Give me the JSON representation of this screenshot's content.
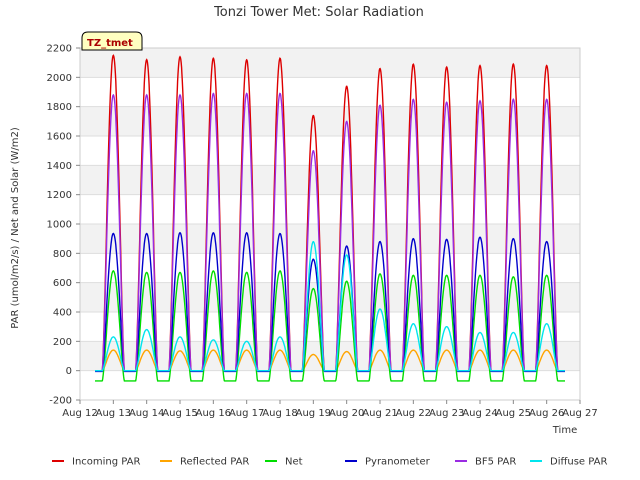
{
  "chart_data": {
    "type": "line",
    "title": "Tonzi Tower Met: Solar Radiation",
    "site_label": "TZ_tmet",
    "xlabel": "Time",
    "ylabel": "PAR (umol/m2/s) / Net and Solar (W/m2)",
    "xlim": [
      12,
      27
    ],
    "ylim": [
      -200,
      2200
    ],
    "x_ticks": [
      "Aug 12",
      "Aug 13",
      "Aug 14",
      "Aug 15",
      "Aug 16",
      "Aug 17",
      "Aug 18",
      "Aug 19",
      "Aug 20",
      "Aug 21",
      "Aug 22",
      "Aug 23",
      "Aug 24",
      "Aug 25",
      "Aug 26",
      "Aug 27"
    ],
    "y_ticks": [
      -200,
      0,
      200,
      400,
      600,
      800,
      1000,
      1200,
      1400,
      1600,
      1800,
      2000,
      2200
    ],
    "grid": true,
    "legend_position": "bottom",
    "day_centers": [
      13,
      14,
      15,
      16,
      17,
      18,
      19,
      20,
      21,
      22,
      23,
      24,
      25,
      26
    ],
    "series": [
      {
        "name": "Incoming PAR",
        "color": "#dd0000",
        "night": 0,
        "daily_peak": [
          2150,
          2120,
          2140,
          2130,
          2120,
          2130,
          1740,
          1940,
          2060,
          2090,
          2070,
          2080,
          2090,
          2080
        ]
      },
      {
        "name": "Reflected PAR",
        "color": "#ffa500",
        "night": 0,
        "daily_peak": [
          140,
          140,
          135,
          140,
          140,
          140,
          110,
          130,
          140,
          140,
          140,
          140,
          140,
          140
        ]
      },
      {
        "name": "Net",
        "color": "#00dd00",
        "night": -70,
        "daily_peak": [
          680,
          670,
          670,
          680,
          670,
          680,
          560,
          610,
          660,
          650,
          650,
          650,
          640,
          650
        ]
      },
      {
        "name": "Pyranometer",
        "color": "#0000cc",
        "night": -5,
        "daily_peak": [
          935,
          935,
          940,
          940,
          940,
          935,
          760,
          850,
          880,
          900,
          895,
          910,
          900,
          880
        ]
      },
      {
        "name": "BF5 PAR",
        "color": "#9a2be2",
        "night": 0,
        "daily_peak": [
          1880,
          1880,
          1880,
          1890,
          1890,
          1890,
          1500,
          1700,
          1810,
          1850,
          1830,
          1840,
          1850,
          1850
        ]
      },
      {
        "name": "Diffuse PAR",
        "color": "#00e5ee",
        "night": 0,
        "daily_peak": [
          230,
          280,
          230,
          210,
          200,
          230,
          880,
          790,
          420,
          320,
          300,
          260,
          260,
          320
        ]
      }
    ]
  }
}
